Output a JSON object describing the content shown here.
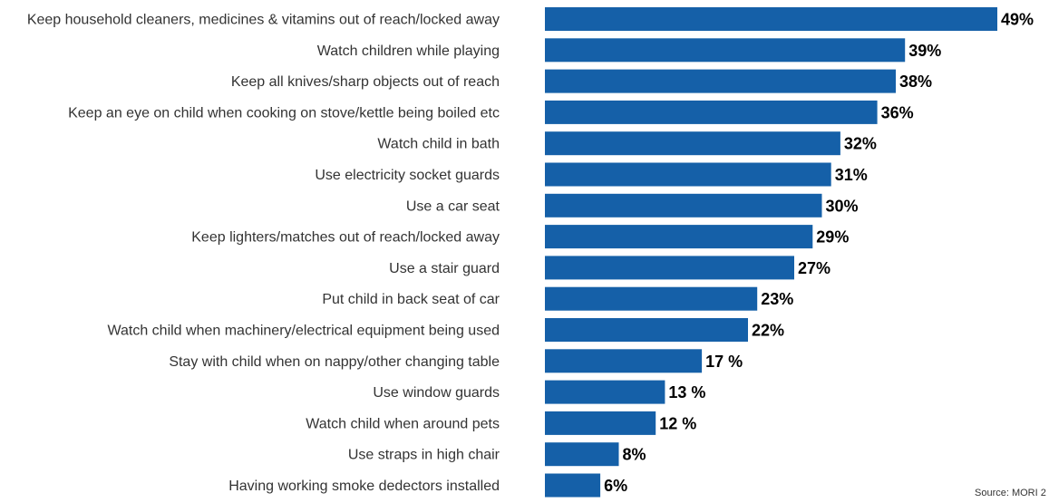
{
  "chart_data": {
    "type": "bar",
    "orientation": "horizontal",
    "categories": [
      "Keep household cleaners, medicines & vitamins out of reach/locked away",
      "Watch children while playing",
      "Keep all knives/sharp objects out of reach",
      "Keep an eye on child when cooking on stove/kettle being boiled etc",
      "Watch child in bath",
      "Use electricity socket guards",
      "Use a car seat",
      "Keep lighters/matches out of reach/locked away",
      "Use a stair guard",
      "Put child in back seat of car",
      "Watch child when machinery/electrical equipment being used",
      "Stay with child when on nappy/other changing table",
      "Use window guards",
      "Watch child when around pets",
      "Use straps in high chair",
      "Having working smoke dedectors installed"
    ],
    "values": [
      49,
      39,
      38,
      36,
      32,
      31,
      30,
      29,
      27,
      23,
      22,
      17,
      13,
      12,
      8,
      6
    ],
    "value_labels": [
      "49%",
      "39%",
      "38%",
      "36%",
      "32%",
      "31%",
      "30%",
      "29%",
      "27%",
      "23%",
      "22%",
      "17 %",
      "13 %",
      "12 %",
      "8%",
      "6%"
    ],
    "xlim": [
      0,
      49
    ],
    "grid": false,
    "bar_color": "#1560a8"
  },
  "source": "Source: MORI 2"
}
